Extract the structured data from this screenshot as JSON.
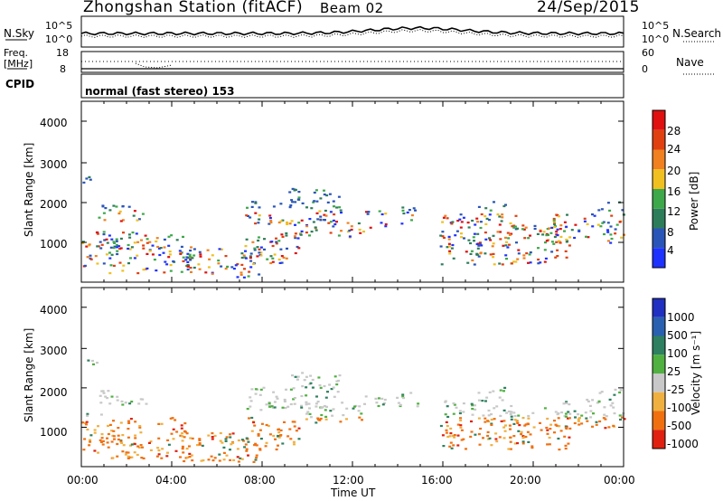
{
  "header": {
    "station_title": "Zhongshan Station (fitACF)",
    "beam": "Beam 02",
    "date": "24/Sep/2015"
  },
  "noise_panel": {
    "left_label": "N.Sky",
    "right_label": "N.Search",
    "left_axis": {
      "top": "10^5",
      "bottom": "10^0"
    },
    "right_axis": {
      "top": "10^5",
      "bottom": "10^0"
    }
  },
  "freq_panel": {
    "left_label_line1": "Freq.",
    "left_label_line2": "[MHz]",
    "right_label": "Nave",
    "left_axis": {
      "top": "18",
      "bottom": "8"
    },
    "right_axis": {
      "top": "60",
      "bottom": "0"
    }
  },
  "cpid": {
    "label": "CPID",
    "value": "normal (fast stereo) 153"
  },
  "chart_data": [
    {
      "type": "heatmap",
      "title": "",
      "ylabel": "Slant Range [km]",
      "xlabel": "",
      "y_ticks": [
        "1000",
        "2000",
        "3000",
        "4000"
      ],
      "ylim": [
        200,
        4600
      ],
      "colorbar": {
        "label": "Power [dB]",
        "ticks": [
          "4",
          "8",
          "12",
          "16",
          "20",
          "24",
          "28"
        ],
        "range": [
          0,
          30
        ],
        "colors": [
          "#1e32ff",
          "#2a55b8",
          "#2e7d5a",
          "#3da84a",
          "#f0c020",
          "#f08020",
          "#e04010",
          "#e01010"
        ]
      }
    },
    {
      "type": "heatmap",
      "title": "",
      "ylabel": "Slant Range [km]",
      "xlabel": "Time UT",
      "x_ticks": [
        "00:00",
        "04:00",
        "08:00",
        "12:00",
        "16:00",
        "20:00",
        "00:00"
      ],
      "y_ticks": [
        "1000",
        "2000",
        "3000",
        "4000"
      ],
      "ylim": [
        200,
        4600
      ],
      "colorbar": {
        "label": "Velocity [m s⁻¹]",
        "ticks": [
          "1000",
          "500",
          "100",
          "25",
          "-25",
          "-100",
          "-500",
          "-1000"
        ],
        "colors": [
          "#2030c0",
          "#2a60b0",
          "#2e8060",
          "#50b040",
          "#c8c8c8",
          "#f0b040",
          "#f07010",
          "#e02010"
        ]
      }
    }
  ]
}
